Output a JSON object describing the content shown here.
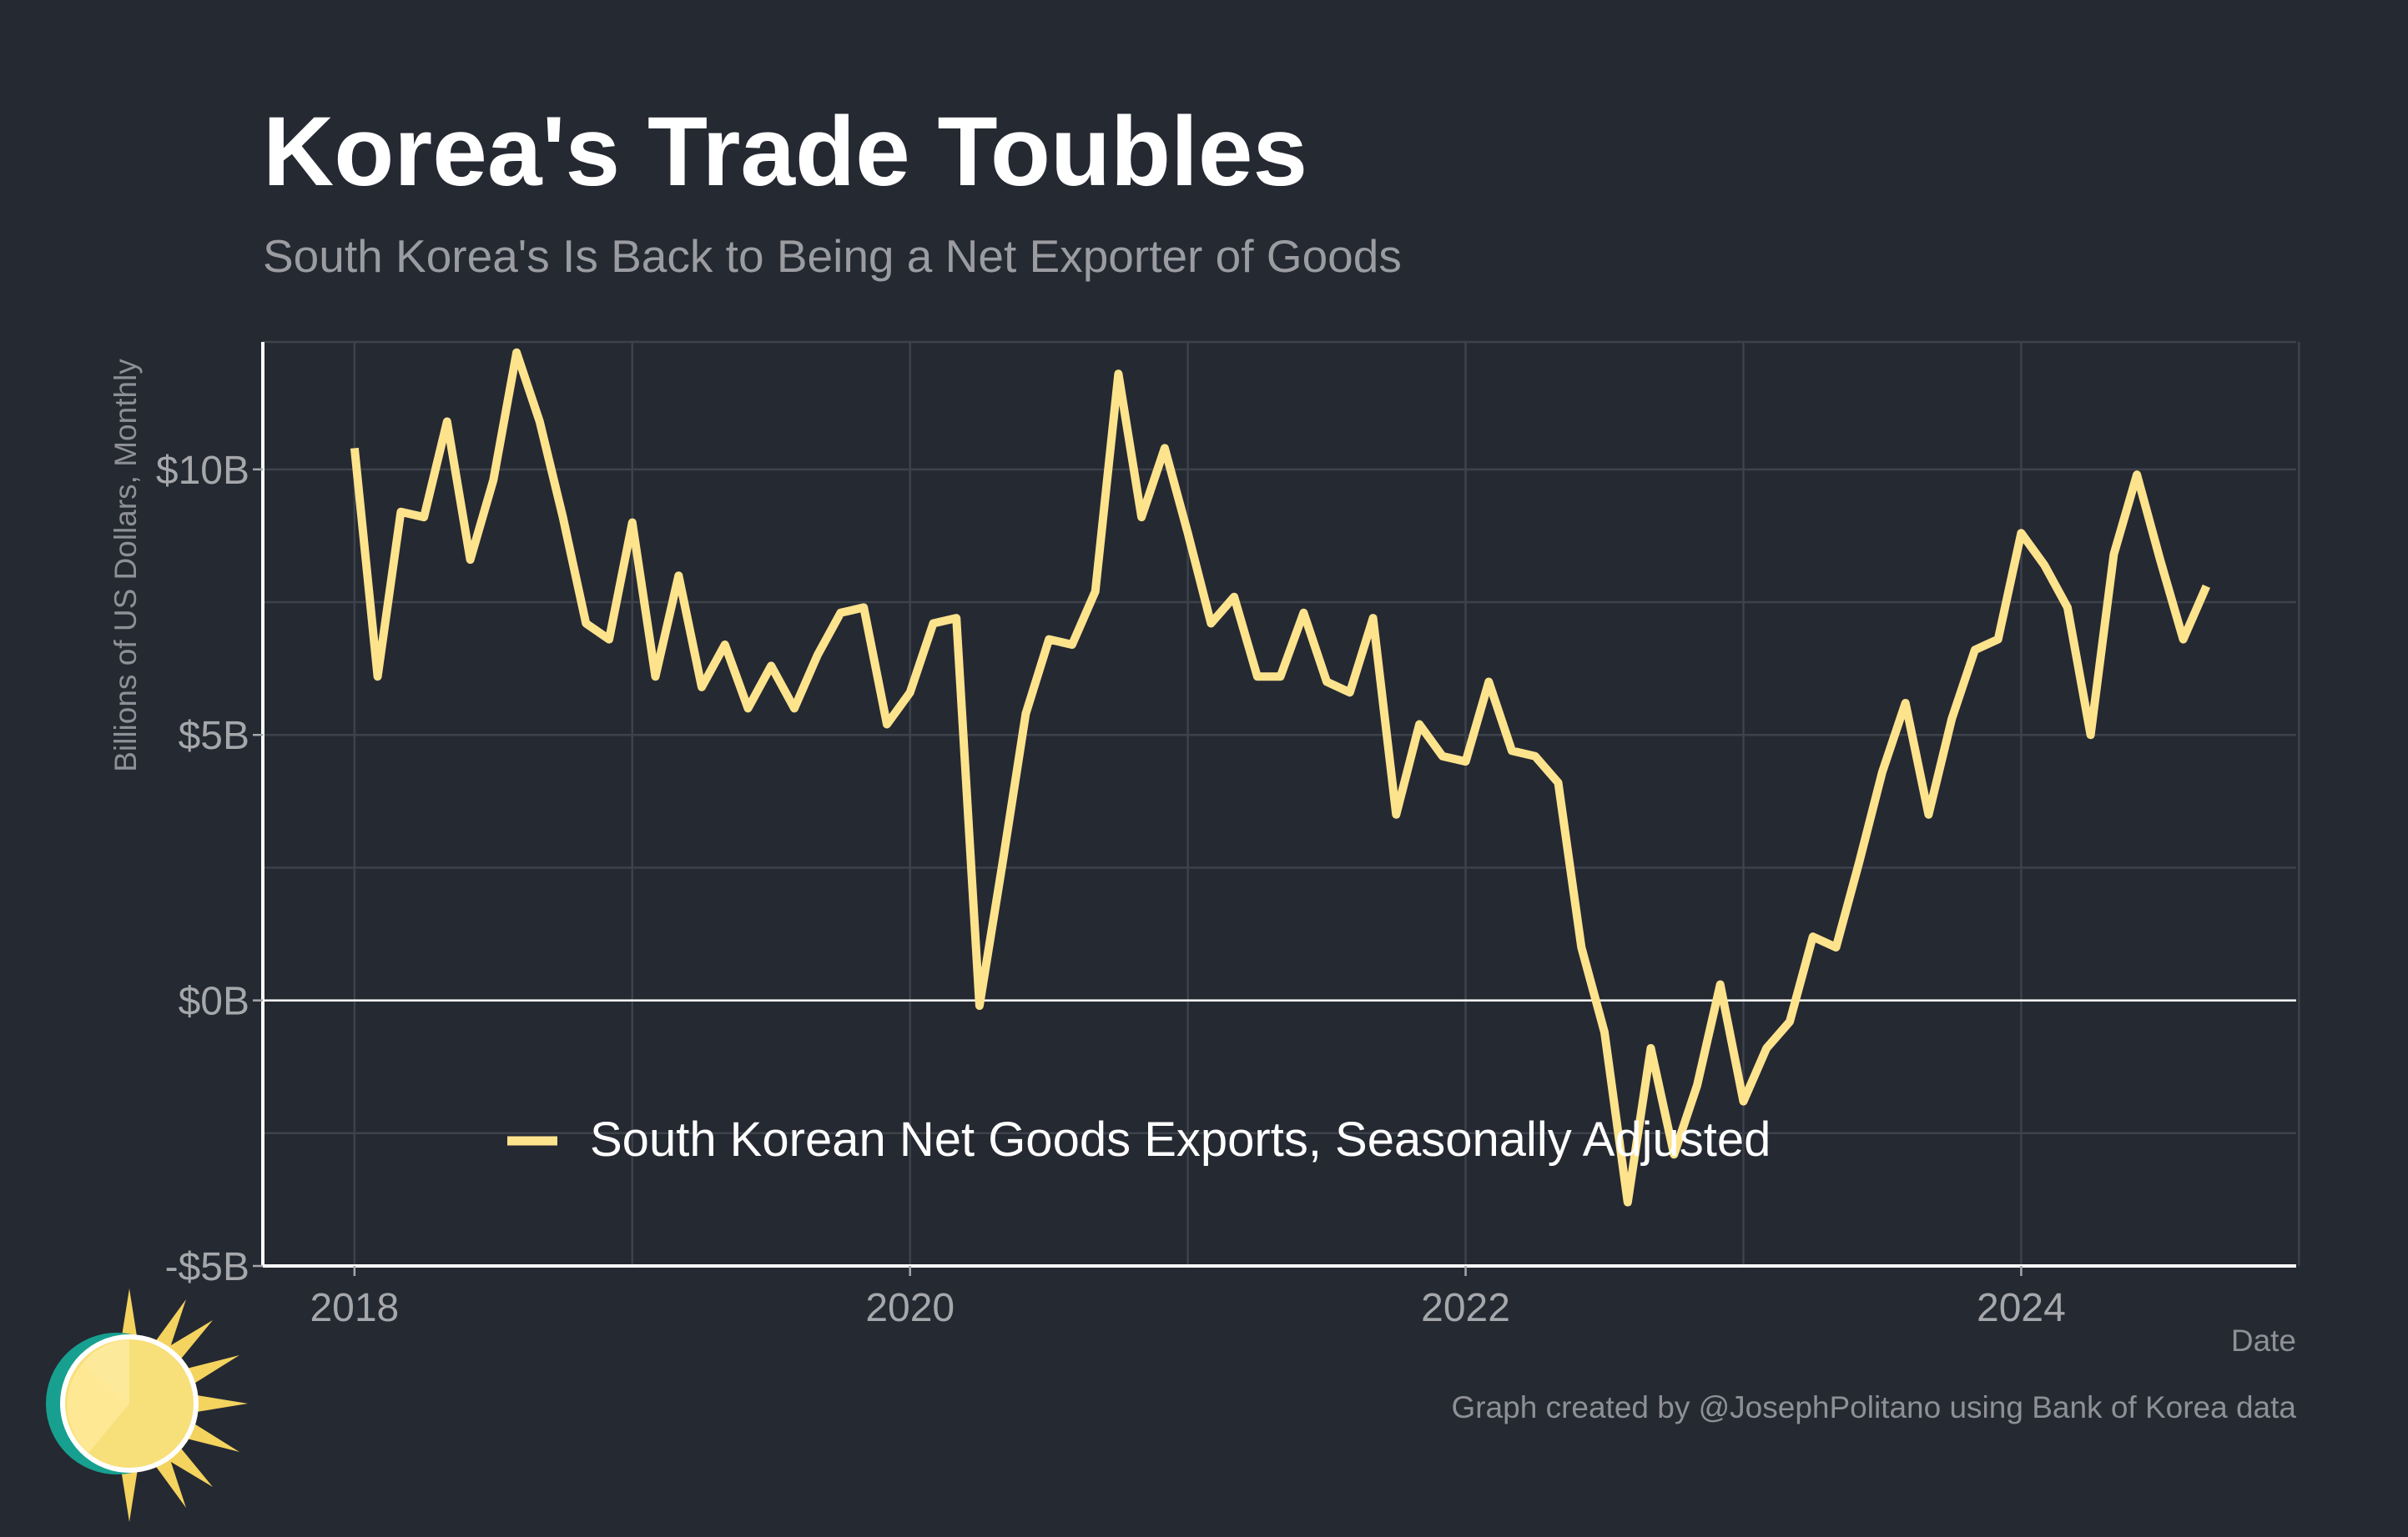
{
  "title": "Korea's Trade Toubles",
  "subtitle": "South Korea's Is Back to Being a Net Exporter of Goods",
  "caption": "Graph created by @JosephPolitano using Bank of Korea data",
  "colors": {
    "background": "#252932",
    "line": "#fee38d",
    "grid": "#3d424b",
    "zero_line": "#ffffff",
    "axis": "#ffffff"
  },
  "chart_data": {
    "type": "line",
    "xlabel": "Date",
    "ylabel": "Billions of US Dollars, Monthly",
    "xlim": [
      2017.67,
      2024.99
    ],
    "ylim": [
      -5,
      12.4
    ],
    "x_ticks": [
      2018,
      2020,
      2022,
      2024
    ],
    "x_tick_labels": [
      "2018",
      "2020",
      "2022",
      "2024"
    ],
    "y_ticks": [
      -5,
      0,
      5,
      10
    ],
    "y_tick_labels": [
      "-$5B",
      "$0B",
      "$5B",
      "$10B"
    ],
    "grid": true,
    "legend_position": "bottom-inside",
    "series": [
      {
        "name": "South Korean Net Goods Exports, Seasonally Adjusted",
        "color": "#fee38d",
        "x": [
          "2018-01",
          "2018-02",
          "2018-03",
          "2018-04",
          "2018-05",
          "2018-06",
          "2018-07",
          "2018-08",
          "2018-09",
          "2018-10",
          "2018-11",
          "2018-12",
          "2019-01",
          "2019-02",
          "2019-03",
          "2019-04",
          "2019-05",
          "2019-06",
          "2019-07",
          "2019-08",
          "2019-09",
          "2019-10",
          "2019-11",
          "2019-12",
          "2020-01",
          "2020-02",
          "2020-03",
          "2020-04",
          "2020-05",
          "2020-06",
          "2020-07",
          "2020-08",
          "2020-09",
          "2020-10",
          "2020-11",
          "2020-12",
          "2021-01",
          "2021-02",
          "2021-03",
          "2021-04",
          "2021-05",
          "2021-06",
          "2021-07",
          "2021-08",
          "2021-09",
          "2021-10",
          "2021-11",
          "2021-12",
          "2022-01",
          "2022-02",
          "2022-03",
          "2022-04",
          "2022-05",
          "2022-06",
          "2022-07",
          "2022-08",
          "2022-09",
          "2022-10",
          "2022-11",
          "2022-12",
          "2023-01",
          "2023-02",
          "2023-03",
          "2023-04",
          "2023-05",
          "2023-06",
          "2023-07",
          "2023-08",
          "2023-09",
          "2023-10",
          "2023-11",
          "2023-12",
          "2024-01",
          "2024-02",
          "2024-03",
          "2024-04",
          "2024-05",
          "2024-06",
          "2024-07",
          "2024-08",
          "2024-09"
        ],
        "values": [
          10.4,
          6.1,
          9.2,
          9.1,
          10.9,
          8.3,
          9.8,
          12.2,
          10.9,
          9.1,
          7.1,
          6.8,
          9.0,
          6.1,
          8.0,
          5.9,
          6.7,
          5.5,
          6.3,
          5.5,
          6.5,
          7.3,
          7.4,
          5.2,
          5.8,
          7.1,
          7.2,
          -0.1,
          2.6,
          5.4,
          6.8,
          6.7,
          7.7,
          11.8,
          9.1,
          10.4,
          8.8,
          7.1,
          7.6,
          6.1,
          6.1,
          7.3,
          6.0,
          5.8,
          7.2,
          3.5,
          5.2,
          4.6,
          4.5,
          6.0,
          4.7,
          4.6,
          4.1,
          1.0,
          -0.6,
          -3.8,
          -0.9,
          -2.9,
          -1.6,
          0.3,
          -1.9,
          -0.9,
          -0.4,
          1.2,
          1.0,
          2.6,
          4.3,
          5.6,
          3.5,
          5.3,
          6.6,
          6.8,
          8.8,
          8.2,
          7.4,
          5.0,
          8.4,
          9.9,
          8.3,
          6.8,
          7.8
        ]
      }
    ]
  }
}
